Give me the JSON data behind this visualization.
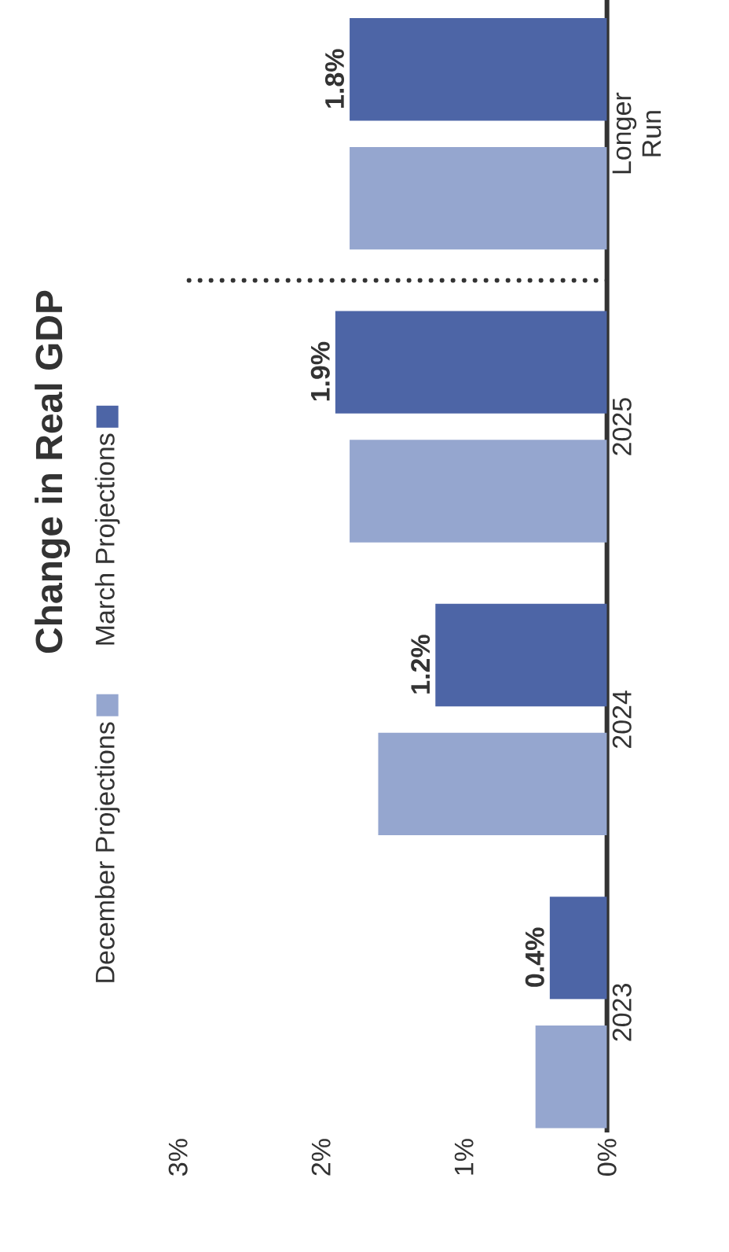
{
  "chart_data": {
    "type": "bar",
    "orientation": "horizontal",
    "title": "Change in Real GDP",
    "categories": [
      "Longer Run",
      "2025",
      "2024",
      "2023"
    ],
    "series": [
      {
        "name": "December Projections",
        "color": "#95a6cf",
        "values": [
          1.8,
          1.8,
          1.6,
          0.5
        ]
      },
      {
        "name": "March Projections",
        "color": "#4d65a6",
        "values": [
          1.8,
          1.9,
          1.2,
          0.4
        ],
        "value_labels": [
          "1.8%",
          "1.9%",
          "1.2%",
          "0.4%"
        ]
      }
    ],
    "xlim": [
      3,
      0
    ],
    "xticks": [
      {
        "value": 3,
        "label": "3%"
      },
      {
        "value": 2,
        "label": "2%"
      },
      {
        "value": 1,
        "label": "1%"
      },
      {
        "value": 0,
        "label": "0%"
      }
    ],
    "legend": "left",
    "grid": false
  }
}
